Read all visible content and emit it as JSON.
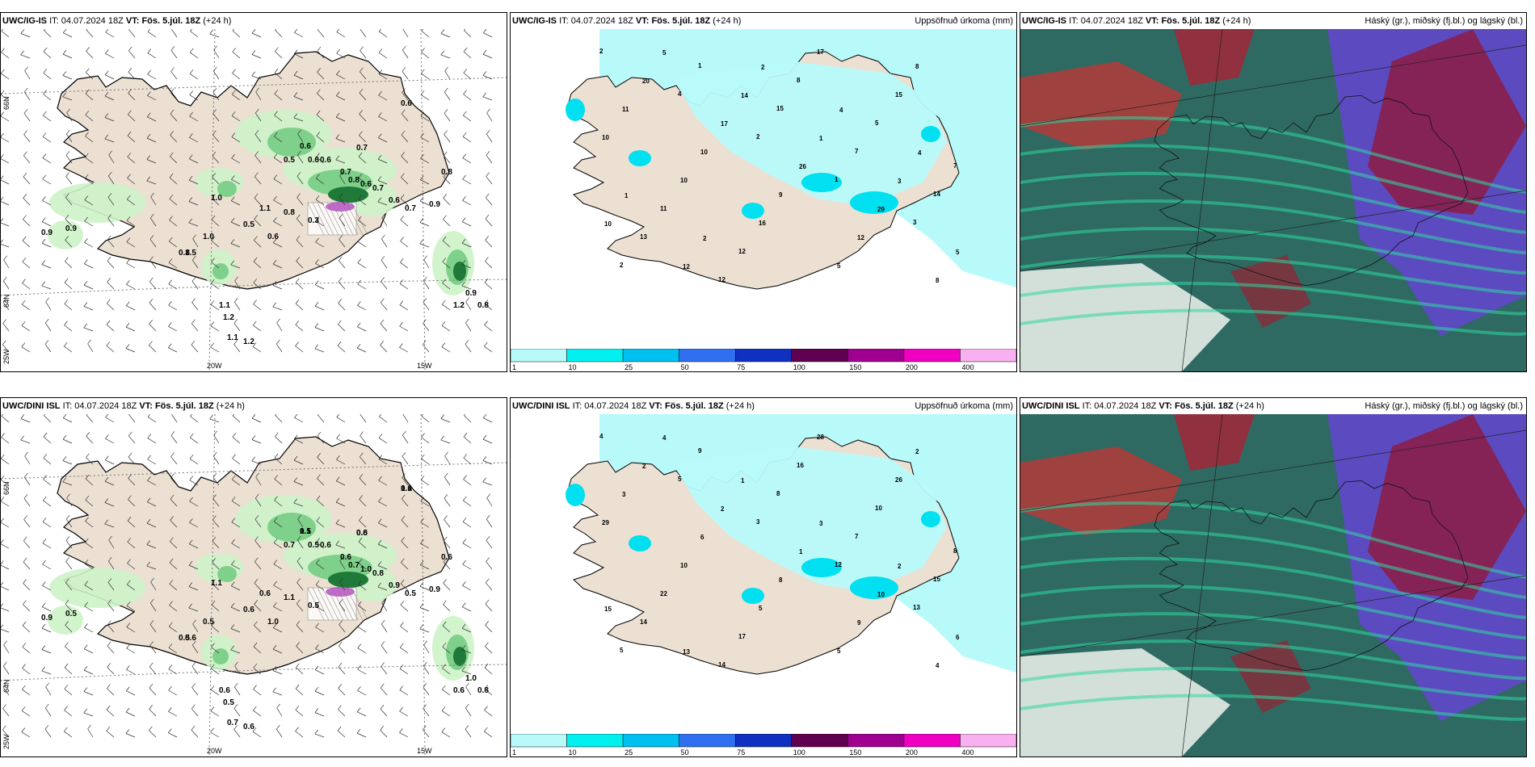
{
  "panels": [
    {
      "model": "UWC/IG-IS",
      "it_label": "IT:",
      "it": "04.07.2024 18Z",
      "vt_label": "VT:",
      "vt": "Fös. 5.júl. 18Z",
      "lead": "(+24 h)",
      "right_title": ""
    },
    {
      "model": "UWC/IG-IS",
      "it_label": "IT:",
      "it": "04.07.2024 18Z",
      "vt_label": "VT:",
      "vt": "Fös. 5.júl. 18Z",
      "lead": "(+24 h)",
      "right_title": "Uppsöfnuð úrkoma (mm)"
    },
    {
      "model": "UWC/IG-IS",
      "it_label": "IT:",
      "it": "04.07.2024 18Z",
      "vt_label": "VT:",
      "vt": "Fös. 5.júl. 18Z",
      "lead": "(+24 h)",
      "right_title": "Háský (gr.), miðský (fj.bl.) og lágský (bl.)"
    },
    {
      "model": "UWC/DINI ISL",
      "it_label": "IT:",
      "it": "04.07.2024 18Z",
      "vt_label": "VT:",
      "vt": "Fös. 5.júl. 18Z",
      "lead": "(+24 h)",
      "right_title": ""
    },
    {
      "model": "UWC/DINI ISL",
      "it_label": "IT:",
      "it": "04.07.2024 18Z",
      "vt_label": "VT:",
      "vt": "Fös. 5.júl. 18Z",
      "lead": "(+24 h)",
      "right_title": "Uppsöfnuð úrkoma (mm)"
    },
    {
      "model": "UWC/DINI ISL",
      "it_label": "IT:",
      "it": "04.07.2024 18Z",
      "vt_label": "VT:",
      "vt": "Fös. 5.júl. 18Z",
      "lead": "(+24 h)",
      "right_title": "Háský (gr.), miðský (fj.bl.) og lágský (bl.)"
    }
  ],
  "grid_labels": {
    "lat_66": "66N",
    "lat_64": "64N",
    "lon_25": "25W",
    "lon_20": "20W",
    "lon_15": "15W"
  },
  "colorbar": {
    "ticks": [
      "1",
      "10",
      "25",
      "50",
      "75",
      "100",
      "150",
      "200",
      "400"
    ],
    "colors": [
      "#b8fafa",
      "#00f0f0",
      "#00c0f0",
      "#3070f0",
      "#1030c0",
      "#600050",
      "#a00090",
      "#f000c0",
      "#f8b0f0"
    ]
  },
  "wind_precip_top": [
    "0.6",
    "0.7",
    "0.6",
    "0.5",
    "0.6",
    "0.6",
    "0.7",
    "0.8",
    "0.6",
    "0.7",
    "0.6",
    "0.7",
    "0.9",
    "1.0",
    "1.1",
    "0.8",
    "0.3",
    "0.5",
    "0.6",
    "1.0",
    "0.8",
    "1.1",
    "1.2",
    "1.1",
    "1.2",
    "0.9",
    "1.5",
    "0.8",
    "0.9",
    "1.2",
    "0.8",
    "0.9"
  ],
  "wind_precip_bottom": [
    "0.6",
    "0.6",
    "0.5",
    "0.7",
    "0.5",
    "0.6",
    "0.6",
    "0.7",
    "1.0",
    "0.8",
    "0.9",
    "0.5",
    "0.9",
    "1.1",
    "0.6",
    "1.1",
    "0.5",
    "0.6",
    "1.0",
    "0.5",
    "0.5",
    "0.6",
    "0.5",
    "0.7",
    "0.6",
    "0.5",
    "0.6",
    "0.6",
    "1.0",
    "0.6",
    "0.8",
    "0.9",
    "1.1",
    "0.8",
    "1.1"
  ],
  "accum_top": [
    "2",
    "4",
    "2",
    "1",
    "3",
    "2",
    "1",
    "15",
    "7",
    "14",
    "13",
    "12",
    "8",
    "5",
    "7",
    "11",
    "12",
    "17",
    "15",
    "10",
    "10",
    "16",
    "5",
    "8",
    "11",
    "10",
    "9",
    "12",
    "8",
    "20",
    "17",
    "26",
    "29",
    "5",
    "5",
    "14",
    "1",
    "3",
    "10",
    "12",
    "2",
    "4",
    "4",
    "1",
    "2"
  ],
  "accum_bottom": [
    "4",
    "5",
    "3",
    "12",
    "13",
    "5",
    "9",
    "8",
    "7",
    "15",
    "14",
    "14",
    "16",
    "10",
    "8",
    "22",
    "17",
    "28",
    "26",
    "29",
    "10",
    "5",
    "5",
    "2",
    "3",
    "6",
    "8",
    "9",
    "4",
    "2",
    "2",
    "1",
    "10",
    "6",
    "4",
    "1",
    "3",
    "2",
    "15",
    "13"
  ],
  "colors": {
    "land": "#ece0d2",
    "sea_precip": "#b8fafa",
    "green_light": "#cdf3c8",
    "green_mid": "#7ed08a",
    "green_dark": "#1f7a3a",
    "purple": "#b04bbd"
  }
}
